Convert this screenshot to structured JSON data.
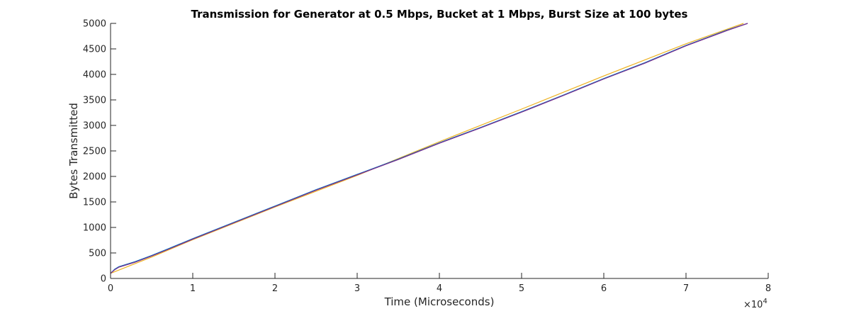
{
  "chart_data": {
    "type": "line",
    "title": "Transmission for Generator at 0.5 Mbps, Bucket at 1 Mbps, Burst Size at 100 bytes",
    "xlabel": "Time (Microseconds)",
    "ylabel": "Bytes Transmitted",
    "x_multiplier_label": "×10",
    "x_multiplier_exp": "4",
    "xlim": [
      0,
      80000
    ],
    "ylim": [
      0,
      5000
    ],
    "x_ticks": [
      0,
      10000,
      20000,
      30000,
      40000,
      50000,
      60000,
      70000,
      80000
    ],
    "x_tick_labels": [
      "0",
      "1",
      "2",
      "3",
      "4",
      "5",
      "6",
      "7",
      "8"
    ],
    "y_ticks": [
      0,
      500,
      1000,
      1500,
      2000,
      2500,
      3000,
      3500,
      4000,
      4500,
      5000
    ],
    "y_tick_labels": [
      "0",
      "500",
      "1000",
      "1500",
      "2000",
      "2500",
      "3000",
      "3500",
      "4000",
      "4500",
      "5000"
    ],
    "grid": false,
    "series": [
      {
        "color": "#EDB120",
        "x": [
          0,
          5000,
          10000,
          20000,
          30000,
          40000,
          50000,
          60000,
          70000,
          77000
        ],
        "y": [
          100,
          420,
          760,
          1400,
          2020,
          2680,
          3320,
          3970,
          4600,
          5000
        ]
      },
      {
        "color": "#0072BD",
        "x": [
          0,
          500,
          1000,
          3000,
          5000,
          7000,
          10000,
          15000,
          20000,
          25000,
          30000,
          35000,
          40000,
          45000,
          50000,
          55000,
          60000,
          65000,
          70000,
          75000,
          77500
        ],
        "y": [
          100,
          180,
          230,
          330,
          450,
          580,
          780,
          1100,
          1420,
          1740,
          2040,
          2340,
          2660,
          2960,
          3270,
          3590,
          3920,
          4230,
          4570,
          4870,
          5000
        ]
      },
      {
        "color": "#7E2F8E",
        "x": [
          0,
          500,
          1000,
          3000,
          5000,
          7000,
          10000,
          15000,
          20000,
          25000,
          30000,
          35000,
          40000,
          45000,
          50000,
          55000,
          60000,
          65000,
          70000,
          75000,
          77500
        ],
        "y": [
          100,
          170,
          220,
          320,
          440,
          570,
          770,
          1090,
          1410,
          1730,
          2030,
          2330,
          2650,
          2950,
          3260,
          3580,
          3910,
          4220,
          4560,
          4860,
          5000
        ]
      }
    ]
  }
}
